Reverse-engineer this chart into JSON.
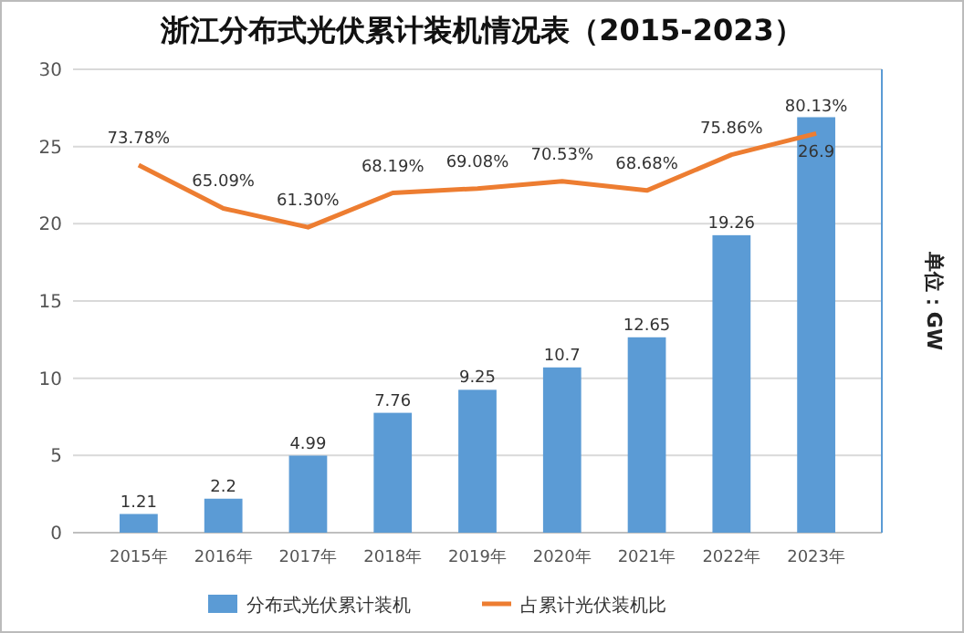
{
  "chart_data": {
    "type": "bar",
    "title": "浙江分布式光伏累计装机情况表（2015-2023）",
    "y2label": "单位：GW",
    "categories": [
      "2015年",
      "2016年",
      "2017年",
      "2018年",
      "2019年",
      "2020年",
      "2021年",
      "2022年",
      "2023年"
    ],
    "series": [
      {
        "name": "分布式光伏累计装机",
        "color": "#5b9bd5",
        "values": [
          1.21,
          2.2,
          4.99,
          7.76,
          9.25,
          10.7,
          12.65,
          19.26,
          26.9
        ],
        "value_labels": [
          "1.21",
          "2.2",
          "4.99",
          "7.76",
          "9.25",
          "10.7",
          "12.65",
          "19.26",
          "26.9"
        ]
      },
      {
        "name": "占累计光伏装机比",
        "type": "line",
        "axis": "y2",
        "color": "#ed7d31",
        "values": [
          73.78,
          65.09,
          61.3,
          68.19,
          69.08,
          70.53,
          68.68,
          75.86,
          80.13
        ],
        "value_labels": [
          "73.78%",
          "65.09%",
          "61.30%",
          "68.19%",
          "69.08%",
          "70.53%",
          "68.68%",
          "75.86%",
          "80.13%"
        ]
      }
    ],
    "ylim": [
      0,
      30
    ],
    "yticks": [
      0,
      5,
      10,
      15,
      20,
      25,
      30
    ],
    "y2lim": [
      0,
      93
    ],
    "grid": "y",
    "legend": "bottom",
    "marker": "none",
    "line_style": "solid"
  }
}
